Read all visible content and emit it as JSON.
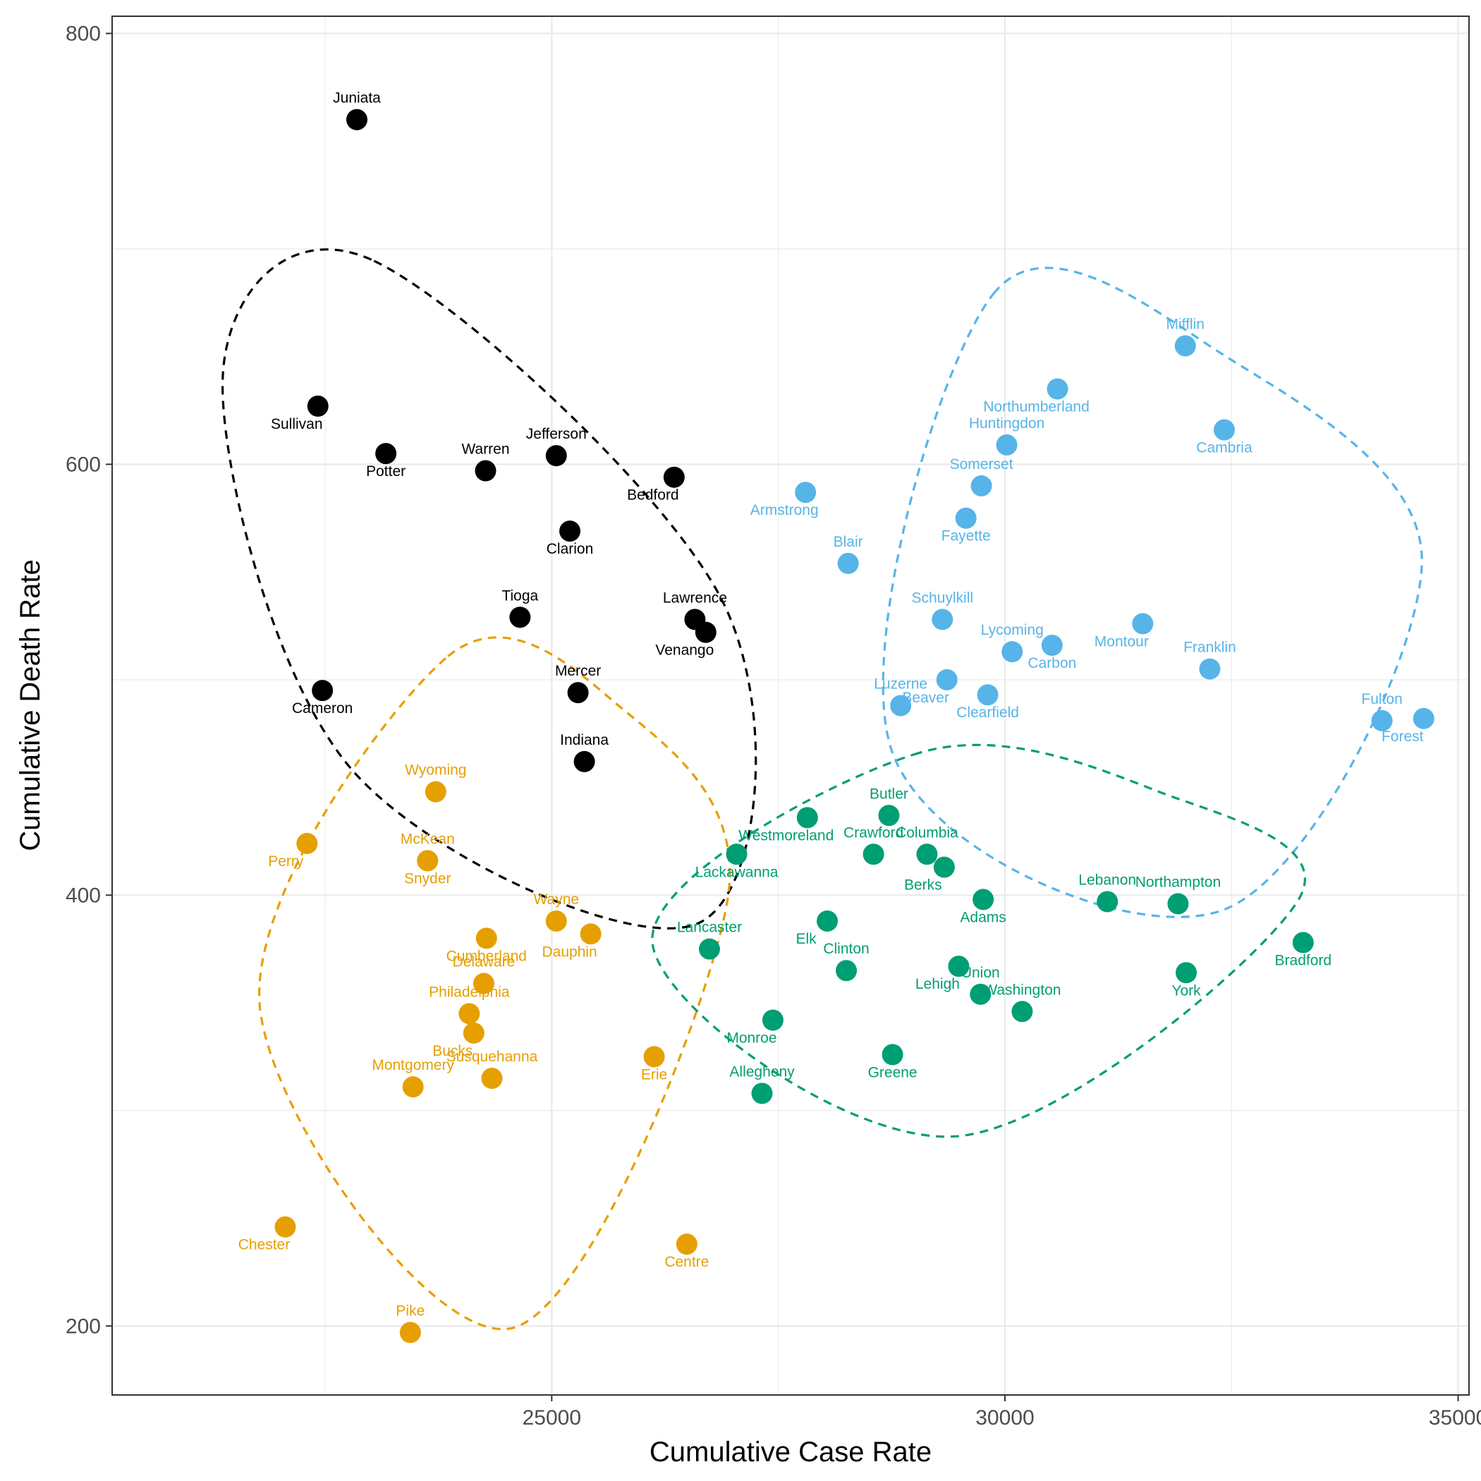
{
  "chart_data": {
    "type": "scatter",
    "xlabel": "Cumulative Case Rate",
    "ylabel": "Cumulative Death Rate",
    "xlim": [
      20150,
      35120
    ],
    "ylim": [
      168,
      808
    ],
    "x_ticks": [
      25000,
      30000,
      35000
    ],
    "y_ticks": [
      200,
      400,
      600,
      800
    ],
    "grid": true,
    "legend": "none",
    "colors": {
      "black": "#000000",
      "blue": "#56B4E9",
      "orange": "#E69F00",
      "green": "#009E73"
    },
    "series": [
      {
        "color": "#000000",
        "points": [
          {
            "label": "Juniata",
            "x": 22850,
            "y": 760
          },
          {
            "label": "Sullivan",
            "x": 22420,
            "y": 627
          },
          {
            "label": "Potter",
            "x": 23170,
            "y": 605
          },
          {
            "label": "Warren",
            "x": 24270,
            "y": 597
          },
          {
            "label": "Jefferson",
            "x": 25050,
            "y": 604
          },
          {
            "label": "Bedford",
            "x": 26350,
            "y": 594
          },
          {
            "label": "Clarion",
            "x": 25200,
            "y": 569
          },
          {
            "label": "Tioga",
            "x": 24650,
            "y": 529
          },
          {
            "label": "Lawrence",
            "x": 26580,
            "y": 528
          },
          {
            "label": "Venango",
            "x": 26700,
            "y": 522
          },
          {
            "label": "Cameron",
            "x": 22470,
            "y": 495
          },
          {
            "label": "Mercer",
            "x": 25290,
            "y": 494
          },
          {
            "label": "Indiana",
            "x": 25360,
            "y": 462
          }
        ]
      },
      {
        "color": "#56B4E9",
        "points": [
          {
            "label": "Mifflin",
            "x": 31990,
            "y": 655
          },
          {
            "label": "Northumberland",
            "x": 30580,
            "y": 635
          },
          {
            "label": "Cambria",
            "x": 32420,
            "y": 616
          },
          {
            "label": "Huntingdon",
            "x": 30020,
            "y": 609
          },
          {
            "label": "Somerset",
            "x": 29740,
            "y": 590
          },
          {
            "label": "Armstrong",
            "x": 27800,
            "y": 587
          },
          {
            "label": "Fayette",
            "x": 29570,
            "y": 575
          },
          {
            "label": "Blair",
            "x": 28270,
            "y": 554
          },
          {
            "label": "Schuylkill",
            "x": 29310,
            "y": 528
          },
          {
            "label": "Montour",
            "x": 31520,
            "y": 526
          },
          {
            "label": "Carbon",
            "x": 30520,
            "y": 516
          },
          {
            "label": "Lycoming",
            "x": 30080,
            "y": 513
          },
          {
            "label": "Franklin",
            "x": 32260,
            "y": 505
          },
          {
            "label": "Beaver",
            "x": 29360,
            "y": 500
          },
          {
            "label": "Clearfield",
            "x": 29810,
            "y": 493
          },
          {
            "label": "Luzerne",
            "x": 28850,
            "y": 488
          },
          {
            "label": "Fulton",
            "x": 34160,
            "y": 481
          },
          {
            "label": "Forest",
            "x": 34620,
            "y": 482
          }
        ]
      },
      {
        "color": "#009E73",
        "points": [
          {
            "label": "Butler",
            "x": 28720,
            "y": 437
          },
          {
            "label": "Westmoreland",
            "x": 27820,
            "y": 436
          },
          {
            "label": "Lackawanna",
            "x": 27040,
            "y": 419
          },
          {
            "label": "Crawford",
            "x": 28550,
            "y": 419
          },
          {
            "label": "Columbia",
            "x": 29140,
            "y": 419
          },
          {
            "label": "Berks",
            "x": 29330,
            "y": 413
          },
          {
            "label": "Adams",
            "x": 29760,
            "y": 398
          },
          {
            "label": "Lebanon",
            "x": 31130,
            "y": 397
          },
          {
            "label": "Northampton",
            "x": 31910,
            "y": 396
          },
          {
            "label": "Elk",
            "x": 28040,
            "y": 388
          },
          {
            "label": "Bradford",
            "x": 33290,
            "y": 378
          },
          {
            "label": "Lancaster",
            "x": 26740,
            "y": 375
          },
          {
            "label": "Clinton",
            "x": 28250,
            "y": 365
          },
          {
            "label": "Lehigh",
            "x": 29490,
            "y": 367
          },
          {
            "label": "York",
            "x": 32000,
            "y": 364
          },
          {
            "label": "Union",
            "x": 29730,
            "y": 354
          },
          {
            "label": "Washington",
            "x": 30190,
            "y": 346
          },
          {
            "label": "Monroe",
            "x": 27440,
            "y": 342
          },
          {
            "label": "Greene",
            "x": 28760,
            "y": 326
          },
          {
            "label": "Allegheny",
            "x": 27320,
            "y": 308
          }
        ]
      },
      {
        "color": "#E69F00",
        "points": [
          {
            "label": "Wyoming",
            "x": 23720,
            "y": 448
          },
          {
            "label": "Perry",
            "x": 22300,
            "y": 424
          },
          {
            "label": "Snyder",
            "x": 23630,
            "y": 416
          },
          {
            "label": "McKean",
            "x": 23630,
            "y": 416
          },
          {
            "label": "Wayne",
            "x": 25050,
            "y": 388
          },
          {
            "label": "Dauphin",
            "x": 25430,
            "y": 382
          },
          {
            "label": "Cumberland",
            "x": 24280,
            "y": 380
          },
          {
            "label": "Delaware",
            "x": 24250,
            "y": 359
          },
          {
            "label": "Philadelphia",
            "x": 24090,
            "y": 345
          },
          {
            "label": "Bucks",
            "x": 24140,
            "y": 336
          },
          {
            "label": "Erie",
            "x": 26130,
            "y": 325
          },
          {
            "label": "Susquehanna",
            "x": 24340,
            "y": 315
          },
          {
            "label": "Montgomery",
            "x": 23470,
            "y": 311
          },
          {
            "label": "Chester",
            "x": 22060,
            "y": 246
          },
          {
            "label": "Centre",
            "x": 26490,
            "y": 238
          },
          {
            "label": "Pike",
            "x": 23440,
            "y": 197
          }
        ]
      }
    ],
    "ellipses": [
      {
        "color": "#000000",
        "center": [
          24160,
          594
        ],
        "outline": [
          [
            23010,
            695
          ],
          [
            21370,
            640
          ],
          [
            22800,
            458
          ],
          [
            26620,
            387
          ],
          [
            26890,
            536
          ]
        ]
      },
      {
        "color": "#56B4E9",
        "center": [
          31030,
          529
        ],
        "outline": [
          [
            29890,
            680
          ],
          [
            28760,
            466
          ],
          [
            32400,
            393
          ],
          [
            34600,
            555
          ],
          [
            32440,
            650
          ]
        ]
      },
      {
        "color": "#009E73",
        "center": [
          30220,
          390
        ],
        "outline": [
          [
            29050,
            466
          ],
          [
            26110,
            378
          ],
          [
            29450,
            288
          ],
          [
            33240,
            398
          ],
          [
            31700,
            448
          ]
        ]
      },
      {
        "color": "#E69F00",
        "center": [
          24630,
          367
        ],
        "outline": [
          [
            23830,
            510
          ],
          [
            21780,
            348
          ],
          [
            24560,
            199
          ],
          [
            26940,
            398
          ],
          [
            25680,
            490
          ]
        ]
      }
    ]
  }
}
